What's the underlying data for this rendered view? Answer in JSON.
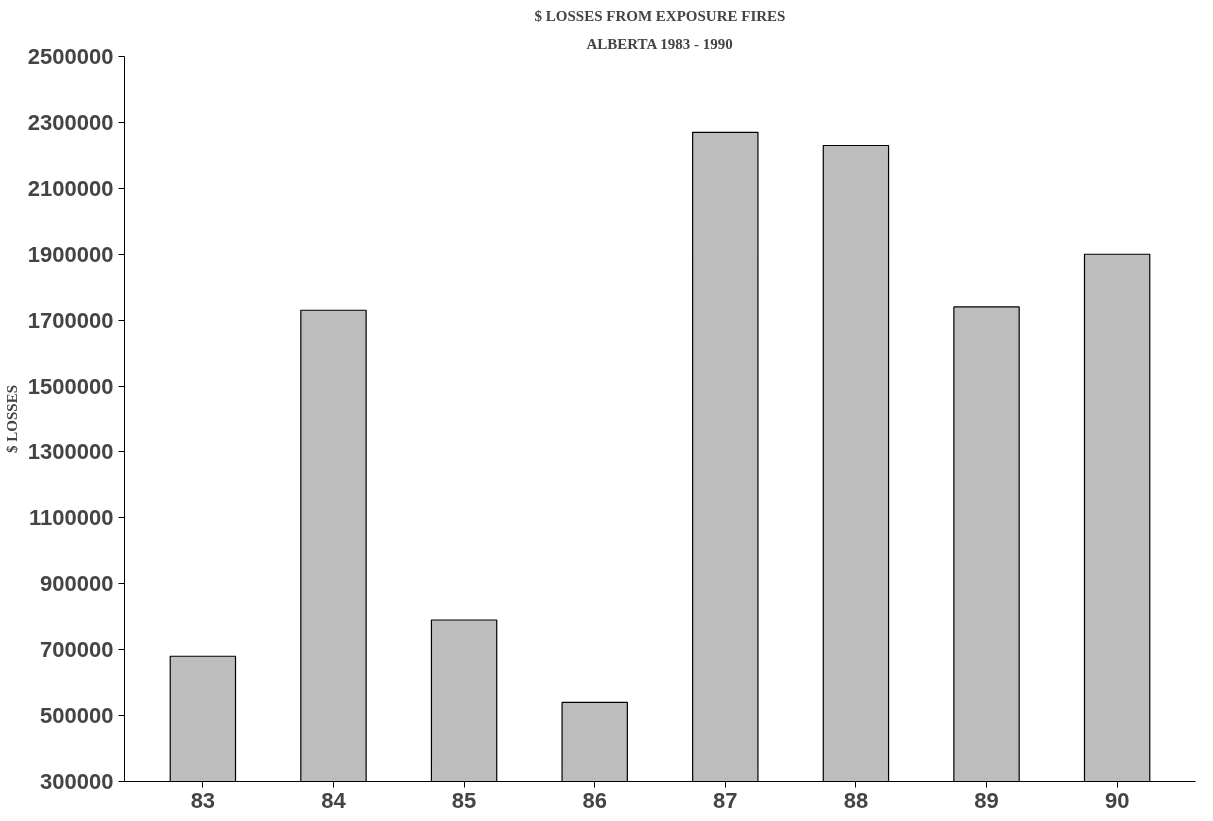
{
  "chart_data": {
    "type": "bar",
    "title": "$ LOSSES FROM EXPOSURE FIRES",
    "subtitle": "ALBERTA 1983 - 1990",
    "ylabel": "$ LOSSES",
    "categories": [
      "83",
      "84",
      "85",
      "86",
      "87",
      "88",
      "89",
      "90"
    ],
    "values": [
      680000,
      1730000,
      790000,
      540000,
      2270000,
      2230000,
      1740000,
      1900000
    ],
    "color": "#bdbdbd",
    "ylim": [
      300000,
      2500000
    ],
    "yticks": [
      300000,
      500000,
      700000,
      900000,
      1100000,
      1300000,
      1500000,
      1700000,
      1900000,
      2100000,
      2300000,
      2500000
    ],
    "grid": false
  }
}
